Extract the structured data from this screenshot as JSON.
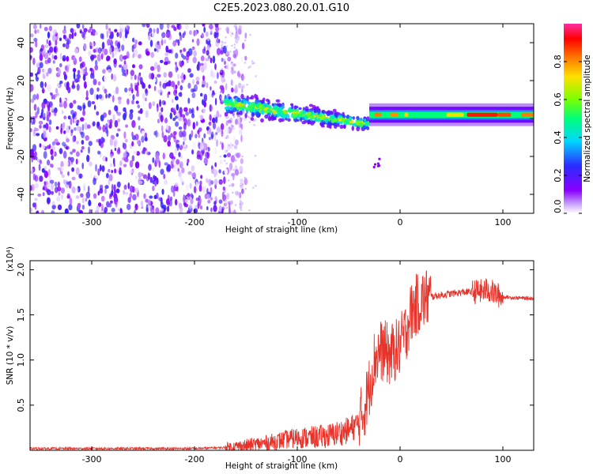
{
  "title": "C2E5.2023.080.20.01.G10",
  "chart_data": [
    {
      "type": "heatmap",
      "title": "C2E5.2023.080.20.01.G10",
      "xlabel": "Height of straight line (km)",
      "ylabel": "Frequency (Hz)",
      "xlim": [
        -360,
        130
      ],
      "ylim": [
        -50,
        50
      ],
      "x_ticks": [
        -300,
        -200,
        -100,
        0,
        100
      ],
      "y_ticks": [
        -40,
        -20,
        0,
        20,
        40
      ],
      "colorbar": {
        "label": "Normalized spectral amplitude",
        "range": [
          0,
          1
        ],
        "ticks": [
          "0.0",
          "0.2",
          "0.4",
          "0.6",
          "0.8"
        ],
        "colors": [
          "#ffffff",
          "#8a00ff",
          "#2b2bff",
          "#00d7ff",
          "#00ff7a",
          "#7aff00",
          "#ffe000",
          "#ff7a00",
          "#ff0000",
          "#ff2ca0"
        ]
      },
      "regions": [
        {
          "x": [
            -360,
            -170
          ],
          "freq": [
            -50,
            50
          ],
          "amplitude": [
            0.0,
            0.25
          ]
        },
        {
          "x": [
            -170,
            -30
          ],
          "freq_center_start": 8,
          "freq_center_end": -3,
          "amplitude": [
            0.2,
            0.5
          ]
        },
        {
          "x": [
            -30,
            130
          ],
          "freq_center": 2,
          "amplitude": [
            0.4,
            0.9
          ]
        }
      ]
    },
    {
      "type": "line",
      "xlabel": "Height of straight line (km)",
      "ylabel": "SNR (10 * v/v)",
      "y_multiplier": "(x10⁴)",
      "xlim": [
        -360,
        130
      ],
      "ylim": [
        0,
        2.1
      ],
      "x_ticks": [
        -300,
        -200,
        -100,
        0,
        100
      ],
      "y_ticks": [
        "0.5",
        "1.0",
        "1.5",
        "2.0"
      ],
      "color": "#e8332b",
      "series": [
        {
          "x": [
            -360,
            -300,
            -200,
            -170,
            -150,
            -130,
            -110,
            -100,
            -90,
            -70,
            -60,
            -50,
            -40,
            -35,
            -30,
            -25,
            -20,
            -15,
            -10,
            -5,
            0,
            5,
            10,
            15,
            20,
            25,
            30,
            40,
            60,
            80,
            85,
            90,
            95,
            100,
            110,
            130
          ],
          "y": [
            0.02,
            0.02,
            0.02,
            0.03,
            0.05,
            0.08,
            0.12,
            0.14,
            0.14,
            0.16,
            0.19,
            0.22,
            0.3,
            0.45,
            0.7,
            1.0,
            1.1,
            1.1,
            1.05,
            1.1,
            1.15,
            1.3,
            1.5,
            1.6,
            1.65,
            1.68,
            1.7,
            1.72,
            1.75,
            1.76,
            1.78,
            1.75,
            1.72,
            1.7,
            1.69,
            1.68
          ]
        }
      ]
    }
  ]
}
